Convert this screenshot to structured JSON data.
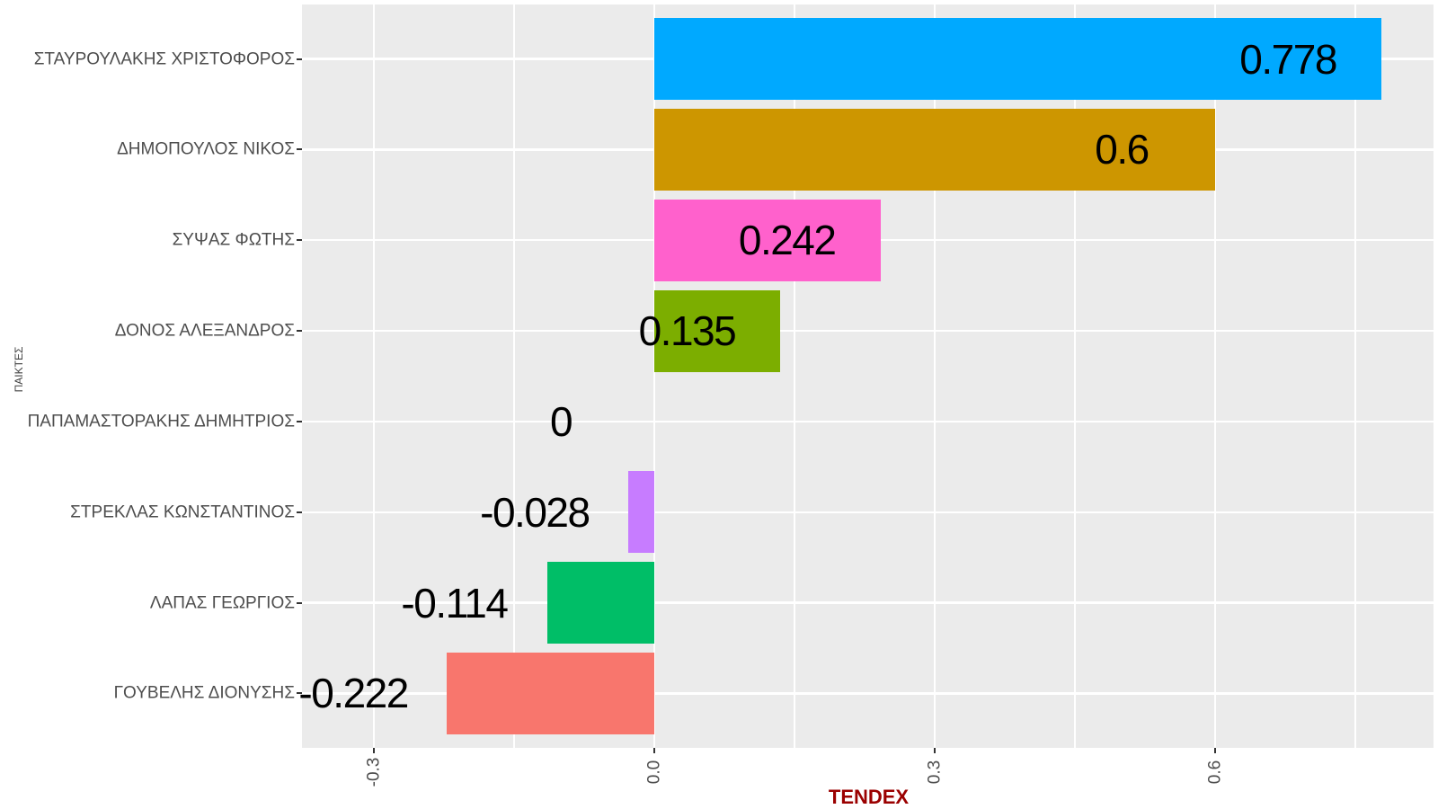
{
  "chart_data": {
    "type": "bar",
    "orientation": "horizontal",
    "xlabel": "TENDEX",
    "ylabel": "ΠΑΙΚΤΕΣ",
    "categories": [
      "ΣΤΑΥΡΟΥΛΑΚΗΣ ΧΡΙΣΤΟΦΟΡΟΣ",
      "ΔΗΜΟΠΟΥΛΟΣ ΝΙΚΟΣ",
      "ΣΥΨΑΣ ΦΩΤΗΣ",
      "ΔΟΝΟΣ ΑΛΕΞΑΝΔΡΟΣ",
      "ΠΑΠΑΜΑΣΤΟΡΑΚΗΣ ΔΗΜΗΤΡΙΟΣ",
      "ΣΤΡΕΚΛΑΣ ΚΩΝΣΤΑΝΤΙΝΟΣ",
      "ΛΑΠΑΣ ΓΕΩΡΓΙΟΣ",
      "ΓΟΥΒΕΛΗΣ ΔΙΟΝΥΣΗΣ"
    ],
    "values": [
      0.778,
      0.6,
      0.242,
      0.135,
      0,
      -0.028,
      -0.114,
      -0.222
    ],
    "value_labels": [
      "0.778",
      "0.6",
      "0.242",
      "0.135",
      "0",
      "-0.028",
      "-0.114",
      "-0.222"
    ],
    "bar_colors": [
      "#00A9FF",
      "#CD9600",
      "#FF61CC",
      "#7CAE00",
      "#00BFC4",
      "#C77CFF",
      "#00BE67",
      "#F8766D"
    ],
    "value_label_offset": -0.1,
    "xlim": [
      -0.376,
      0.834
    ],
    "x_major_ticks": [
      {
        "value": -0.3,
        "label": "-0.3"
      },
      {
        "value": 0.0,
        "label": "0.0"
      },
      {
        "value": 0.3,
        "label": "0.3"
      },
      {
        "value": 0.6,
        "label": "0.6"
      }
    ],
    "x_minor_ticks": [
      -0.15,
      0.15,
      0.45,
      0.75
    ],
    "grid": true,
    "legend": false
  },
  "style": {
    "panel_bg": "#EBEBEB",
    "grid_color": "#FFFFFF",
    "axis_text_color": "#4D4D4D",
    "tick_mark_color": "#333333",
    "x_title_color": "#9B0000",
    "y_title_color": "#404040",
    "value_label_color": "#000000"
  }
}
